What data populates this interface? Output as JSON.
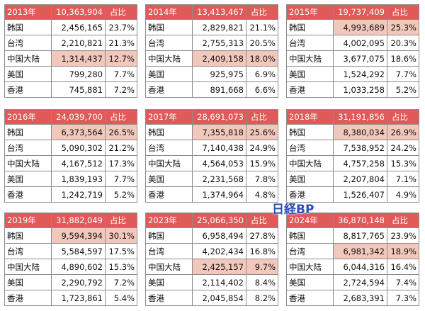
{
  "colors": {
    "header": "#e05a5a",
    "highlight": "#f3c8bc",
    "border": "#8c8c8c",
    "watermark": "#2d4fb8"
  },
  "watermark": "日経BP",
  "tables": [
    {
      "year": "2013年",
      "total": "10,363,904",
      "share_label": "占比",
      "rows": [
        {
          "region": "韩国",
          "value": "2,456,165",
          "pct": "23.7%",
          "hl_val": false,
          "hl_pct": false
        },
        {
          "region": "台湾",
          "value": "2,210,821",
          "pct": "21.3%",
          "hl_val": false,
          "hl_pct": false
        },
        {
          "region": "中国大陆",
          "value": "1,314,437",
          "pct": "12.7%",
          "hl_val": true,
          "hl_pct": true
        },
        {
          "region": "美国",
          "value": "799,280",
          "pct": "7.7%",
          "hl_val": false,
          "hl_pct": false
        },
        {
          "region": "香港",
          "value": "745,881",
          "pct": "7.2%",
          "hl_val": false,
          "hl_pct": false
        }
      ]
    },
    {
      "year": "2014年",
      "total": "13,413,467",
      "share_label": "占比",
      "rows": [
        {
          "region": "韩国",
          "value": "2,829,821",
          "pct": "21.1%",
          "hl_val": false,
          "hl_pct": false
        },
        {
          "region": "台湾",
          "value": "2,755,313",
          "pct": "20.5%",
          "hl_val": false,
          "hl_pct": false
        },
        {
          "region": "中国大陆",
          "value": "2,409,158",
          "pct": "18.0%",
          "hl_val": true,
          "hl_pct": true
        },
        {
          "region": "美国",
          "value": "925,975",
          "pct": "6.9%",
          "hl_val": false,
          "hl_pct": false
        },
        {
          "region": "香港",
          "value": "891,668",
          "pct": "6.6%",
          "hl_val": false,
          "hl_pct": false
        }
      ]
    },
    {
      "year": "2015年",
      "total": "19,737,409",
      "share_label": "占比",
      "rows": [
        {
          "region": "韩国",
          "value": "4,993,689",
          "pct": "25.3%",
          "hl_val": true,
          "hl_pct": true
        },
        {
          "region": "台湾",
          "value": "4,002,095",
          "pct": "20.3%",
          "hl_val": false,
          "hl_pct": false
        },
        {
          "region": "中国大陆",
          "value": "3,677,075",
          "pct": "18.6%",
          "hl_val": false,
          "hl_pct": false
        },
        {
          "region": "美国",
          "value": "1,524,292",
          "pct": "7.7%",
          "hl_val": false,
          "hl_pct": false
        },
        {
          "region": "香港",
          "value": "1,033,258",
          "pct": "5.2%",
          "hl_val": false,
          "hl_pct": false
        }
      ]
    },
    {
      "year": "2016年",
      "total": "24,039,700",
      "share_label": "占比",
      "rows": [
        {
          "region": "韩国",
          "value": "6,373,564",
          "pct": "26.5%",
          "hl_val": true,
          "hl_pct": true
        },
        {
          "region": "台湾",
          "value": "5,090,302",
          "pct": "21.2%",
          "hl_val": false,
          "hl_pct": false
        },
        {
          "region": "中国大陆",
          "value": "4,167,512",
          "pct": "17.3%",
          "hl_val": false,
          "hl_pct": false
        },
        {
          "region": "美国",
          "value": "1,839,193",
          "pct": "7.7%",
          "hl_val": false,
          "hl_pct": false
        },
        {
          "region": "香港",
          "value": "1,242,719",
          "pct": "5.2%",
          "hl_val": false,
          "hl_pct": false
        }
      ]
    },
    {
      "year": "2017年",
      "total": "28,691,073",
      "share_label": "占比",
      "rows": [
        {
          "region": "韩国",
          "value": "7,355,818",
          "pct": "25.6%",
          "hl_val": true,
          "hl_pct": true
        },
        {
          "region": "台湾",
          "value": "7,140,438",
          "pct": "24.9%",
          "hl_val": false,
          "hl_pct": false
        },
        {
          "region": "中国大陆",
          "value": "4,564,053",
          "pct": "15.9%",
          "hl_val": false,
          "hl_pct": false
        },
        {
          "region": "美国",
          "value": "2,231,568",
          "pct": "7.8%",
          "hl_val": false,
          "hl_pct": false
        },
        {
          "region": "香港",
          "value": "1,374,964",
          "pct": "4.8%",
          "hl_val": false,
          "hl_pct": false
        }
      ]
    },
    {
      "year": "2018年",
      "total": "31,191,856",
      "share_label": "占比",
      "rows": [
        {
          "region": "韩国",
          "value": "8,380,034",
          "pct": "26.9%",
          "hl_val": true,
          "hl_pct": true
        },
        {
          "region": "台湾",
          "value": "7,538,952",
          "pct": "24.2%",
          "hl_val": false,
          "hl_pct": false
        },
        {
          "region": "中国大陆",
          "value": "4,757,258",
          "pct": "15.3%",
          "hl_val": false,
          "hl_pct": false
        },
        {
          "region": "美国",
          "value": "2,207,804",
          "pct": "7.1%",
          "hl_val": false,
          "hl_pct": false
        },
        {
          "region": "香港",
          "value": "1,526,407",
          "pct": "4.9%",
          "hl_val": false,
          "hl_pct": false
        }
      ]
    },
    {
      "year": "2019年",
      "total": "31,882,049",
      "share_label": "占比",
      "rows": [
        {
          "region": "韩国",
          "value": "9,594,394",
          "pct": "30.1%",
          "hl_val": true,
          "hl_pct": true
        },
        {
          "region": "台湾",
          "value": "5,584,597",
          "pct": "17.5%",
          "hl_val": false,
          "hl_pct": false
        },
        {
          "region": "中国大陆",
          "value": "4,890,602",
          "pct": "15.3%",
          "hl_val": false,
          "hl_pct": false
        },
        {
          "region": "美国",
          "value": "2,290,792",
          "pct": "7.2%",
          "hl_val": false,
          "hl_pct": false
        },
        {
          "region": "香港",
          "value": "1,723,861",
          "pct": "5.4%",
          "hl_val": false,
          "hl_pct": false
        }
      ]
    },
    {
      "year": "2023年",
      "total": "25,066,350",
      "share_label": "占比",
      "rows": [
        {
          "region": "韩国",
          "value": "6,958,494",
          "pct": "27.8%",
          "hl_val": false,
          "hl_pct": false
        },
        {
          "region": "台湾",
          "value": "4,202,434",
          "pct": "16.8%",
          "hl_val": false,
          "hl_pct": false
        },
        {
          "region": "中国大陆",
          "value": "2,425,157",
          "pct": "9.7%",
          "hl_val": true,
          "hl_pct": true
        },
        {
          "region": "美国",
          "value": "2,114,402",
          "pct": "8.4%",
          "hl_val": false,
          "hl_pct": false
        },
        {
          "region": "香港",
          "value": "2,045,854",
          "pct": "8.2%",
          "hl_val": false,
          "hl_pct": false
        }
      ]
    },
    {
      "year": "2024年",
      "total": "36,870,148",
      "share_label": "占比",
      "rows": [
        {
          "region": "韩国",
          "value": "8,817,765",
          "pct": "23.9%",
          "hl_val": false,
          "hl_pct": false
        },
        {
          "region": "台湾",
          "value": "6,981,342",
          "pct": "18.9%",
          "hl_val": true,
          "hl_pct": true
        },
        {
          "region": "中国大陆",
          "value": "6,044,316",
          "pct": "16.4%",
          "hl_val": false,
          "hl_pct": false
        },
        {
          "region": "美国",
          "value": "2,724,594",
          "pct": "7.4%",
          "hl_val": false,
          "hl_pct": false
        },
        {
          "region": "香港",
          "value": "2,683,391",
          "pct": "7.3%",
          "hl_val": false,
          "hl_pct": false
        }
      ]
    }
  ]
}
